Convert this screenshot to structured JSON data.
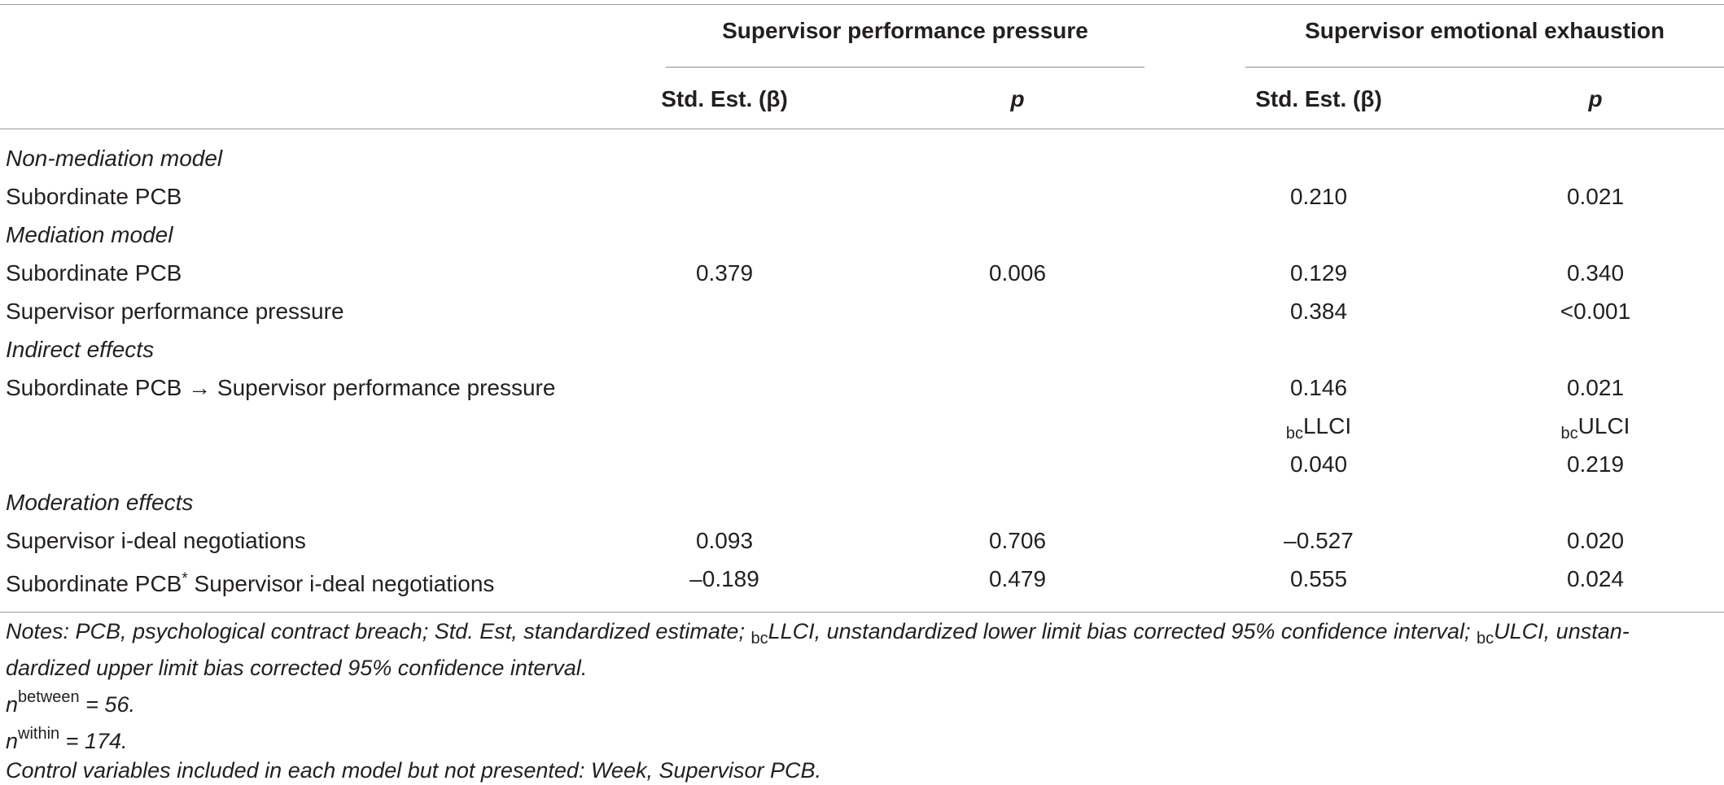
{
  "table": {
    "group_headers": {
      "left": "Supervisor performance pressure",
      "right": "Supervisor emotional exhaustion"
    },
    "column_headers": {
      "std_est": "Std. Est. (β)",
      "p": "p"
    },
    "rows": [
      {
        "kind": "section",
        "label": "Non-mediation model"
      },
      {
        "kind": "data",
        "label": "Subordinate PCB",
        "v1": "",
        "v2": "",
        "v3": "0.210",
        "v4": "0.021"
      },
      {
        "kind": "section",
        "label": "Mediation model"
      },
      {
        "kind": "data",
        "label": "Subordinate PCB",
        "v1": "0.379",
        "v2": "0.006",
        "v3": "0.129",
        "v4": "0.340"
      },
      {
        "kind": "data",
        "label": "Supervisor performance pressure",
        "v1": "",
        "v2": "",
        "v3": "0.384",
        "v4": "<0.001"
      },
      {
        "kind": "section",
        "label": "Indirect effects"
      },
      {
        "kind": "data",
        "label": "Subordinate PCB → Supervisor performance pressure",
        "v1": "",
        "v2": "",
        "v3": "0.146",
        "v4": "0.021"
      },
      {
        "kind": "ci_header",
        "v3_sub": "bc",
        "v3": "LLCI",
        "v4_sub": "bc",
        "v4": "ULCI"
      },
      {
        "kind": "data",
        "label": "",
        "v1": "",
        "v2": "",
        "v3": "0.040",
        "v4": "0.219"
      },
      {
        "kind": "section",
        "label": "Moderation effects"
      },
      {
        "kind": "data",
        "label": "Supervisor i-deal negotiations",
        "v1": "0.093",
        "v2": "0.706",
        "v3": "–0.527",
        "v4": "0.020"
      },
      {
        "kind": "data",
        "label": "Subordinate PCB",
        "label_sup": "*",
        "label_rest": " Supervisor i-deal negotiations",
        "v1": "–0.189",
        "v2": "0.479",
        "v3": "0.555",
        "v4": "0.024"
      }
    ]
  },
  "notes": {
    "line1_a": "Notes: PCB, psychological contract breach; Std. Est, standardized estimate; ",
    "line1_sub1": "bc",
    "line1_b": "LLCI, unstandardized lower limit bias corrected 95% confidence interval; ",
    "line1_sub2": "bc",
    "line1_c": "ULCI, unstan-",
    "line2": "dardized upper limit bias corrected 95% confidence interval.",
    "n_between_base": "n",
    "n_between_sup": "between",
    "n_between_val": " = 56.",
    "n_within_base": "n",
    "n_within_sup": "within",
    "n_within_val": " = 174.",
    "controls": "Control variables included in each model but not presented: Week, Supervisor PCB."
  }
}
